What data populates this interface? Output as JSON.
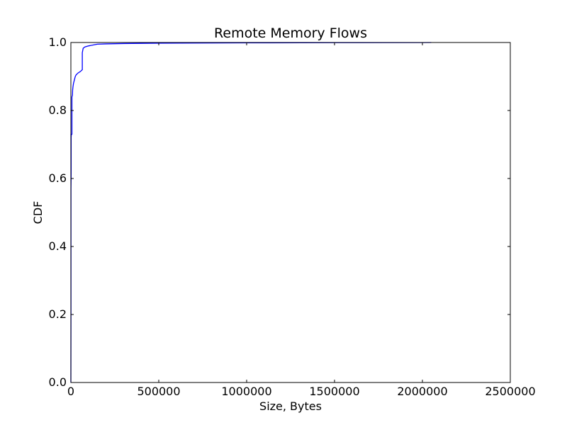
{
  "chart_data": {
    "type": "line",
    "title": "Remote Memory Flows",
    "xlabel": "Size, Bytes",
    "ylabel": "CDF",
    "xlim": [
      0,
      2500000
    ],
    "ylim": [
      0,
      1.0
    ],
    "xticks": [
      0,
      500000,
      1000000,
      1500000,
      2000000,
      2500000
    ],
    "xtick_labels": [
      "0",
      "500000",
      "1000000",
      "1500000",
      "2000000",
      "2500000"
    ],
    "yticks": [
      0,
      0.2,
      0.4,
      0.6,
      0.8,
      1.0
    ],
    "ytick_labels": [
      "0.0",
      "0.2",
      "0.4",
      "0.6",
      "0.8",
      "1.0"
    ],
    "grid": false,
    "series": [
      {
        "color": "#0000ff",
        "x": [
          0,
          500,
          500,
          1200,
          1500,
          1500,
          2200,
          2500,
          6000,
          6000,
          9000,
          10000,
          12000,
          15000,
          20000,
          25000,
          30000,
          40000,
          55000,
          65000,
          65000,
          70000,
          80000,
          100000,
          130000,
          150000,
          200000,
          300000,
          500000,
          1000000,
          1500000,
          2000000,
          2050000
        ],
        "y": [
          0,
          0.2,
          0.57,
          0.6,
          0.62,
          0.72,
          0.73,
          0.73,
          0.73,
          0.84,
          0.845,
          0.86,
          0.87,
          0.88,
          0.89,
          0.9,
          0.905,
          0.91,
          0.915,
          0.92,
          0.97,
          0.983,
          0.987,
          0.99,
          0.993,
          0.995,
          0.996,
          0.997,
          0.998,
          0.999,
          0.9995,
          0.9998,
          1.0
        ]
      }
    ]
  }
}
